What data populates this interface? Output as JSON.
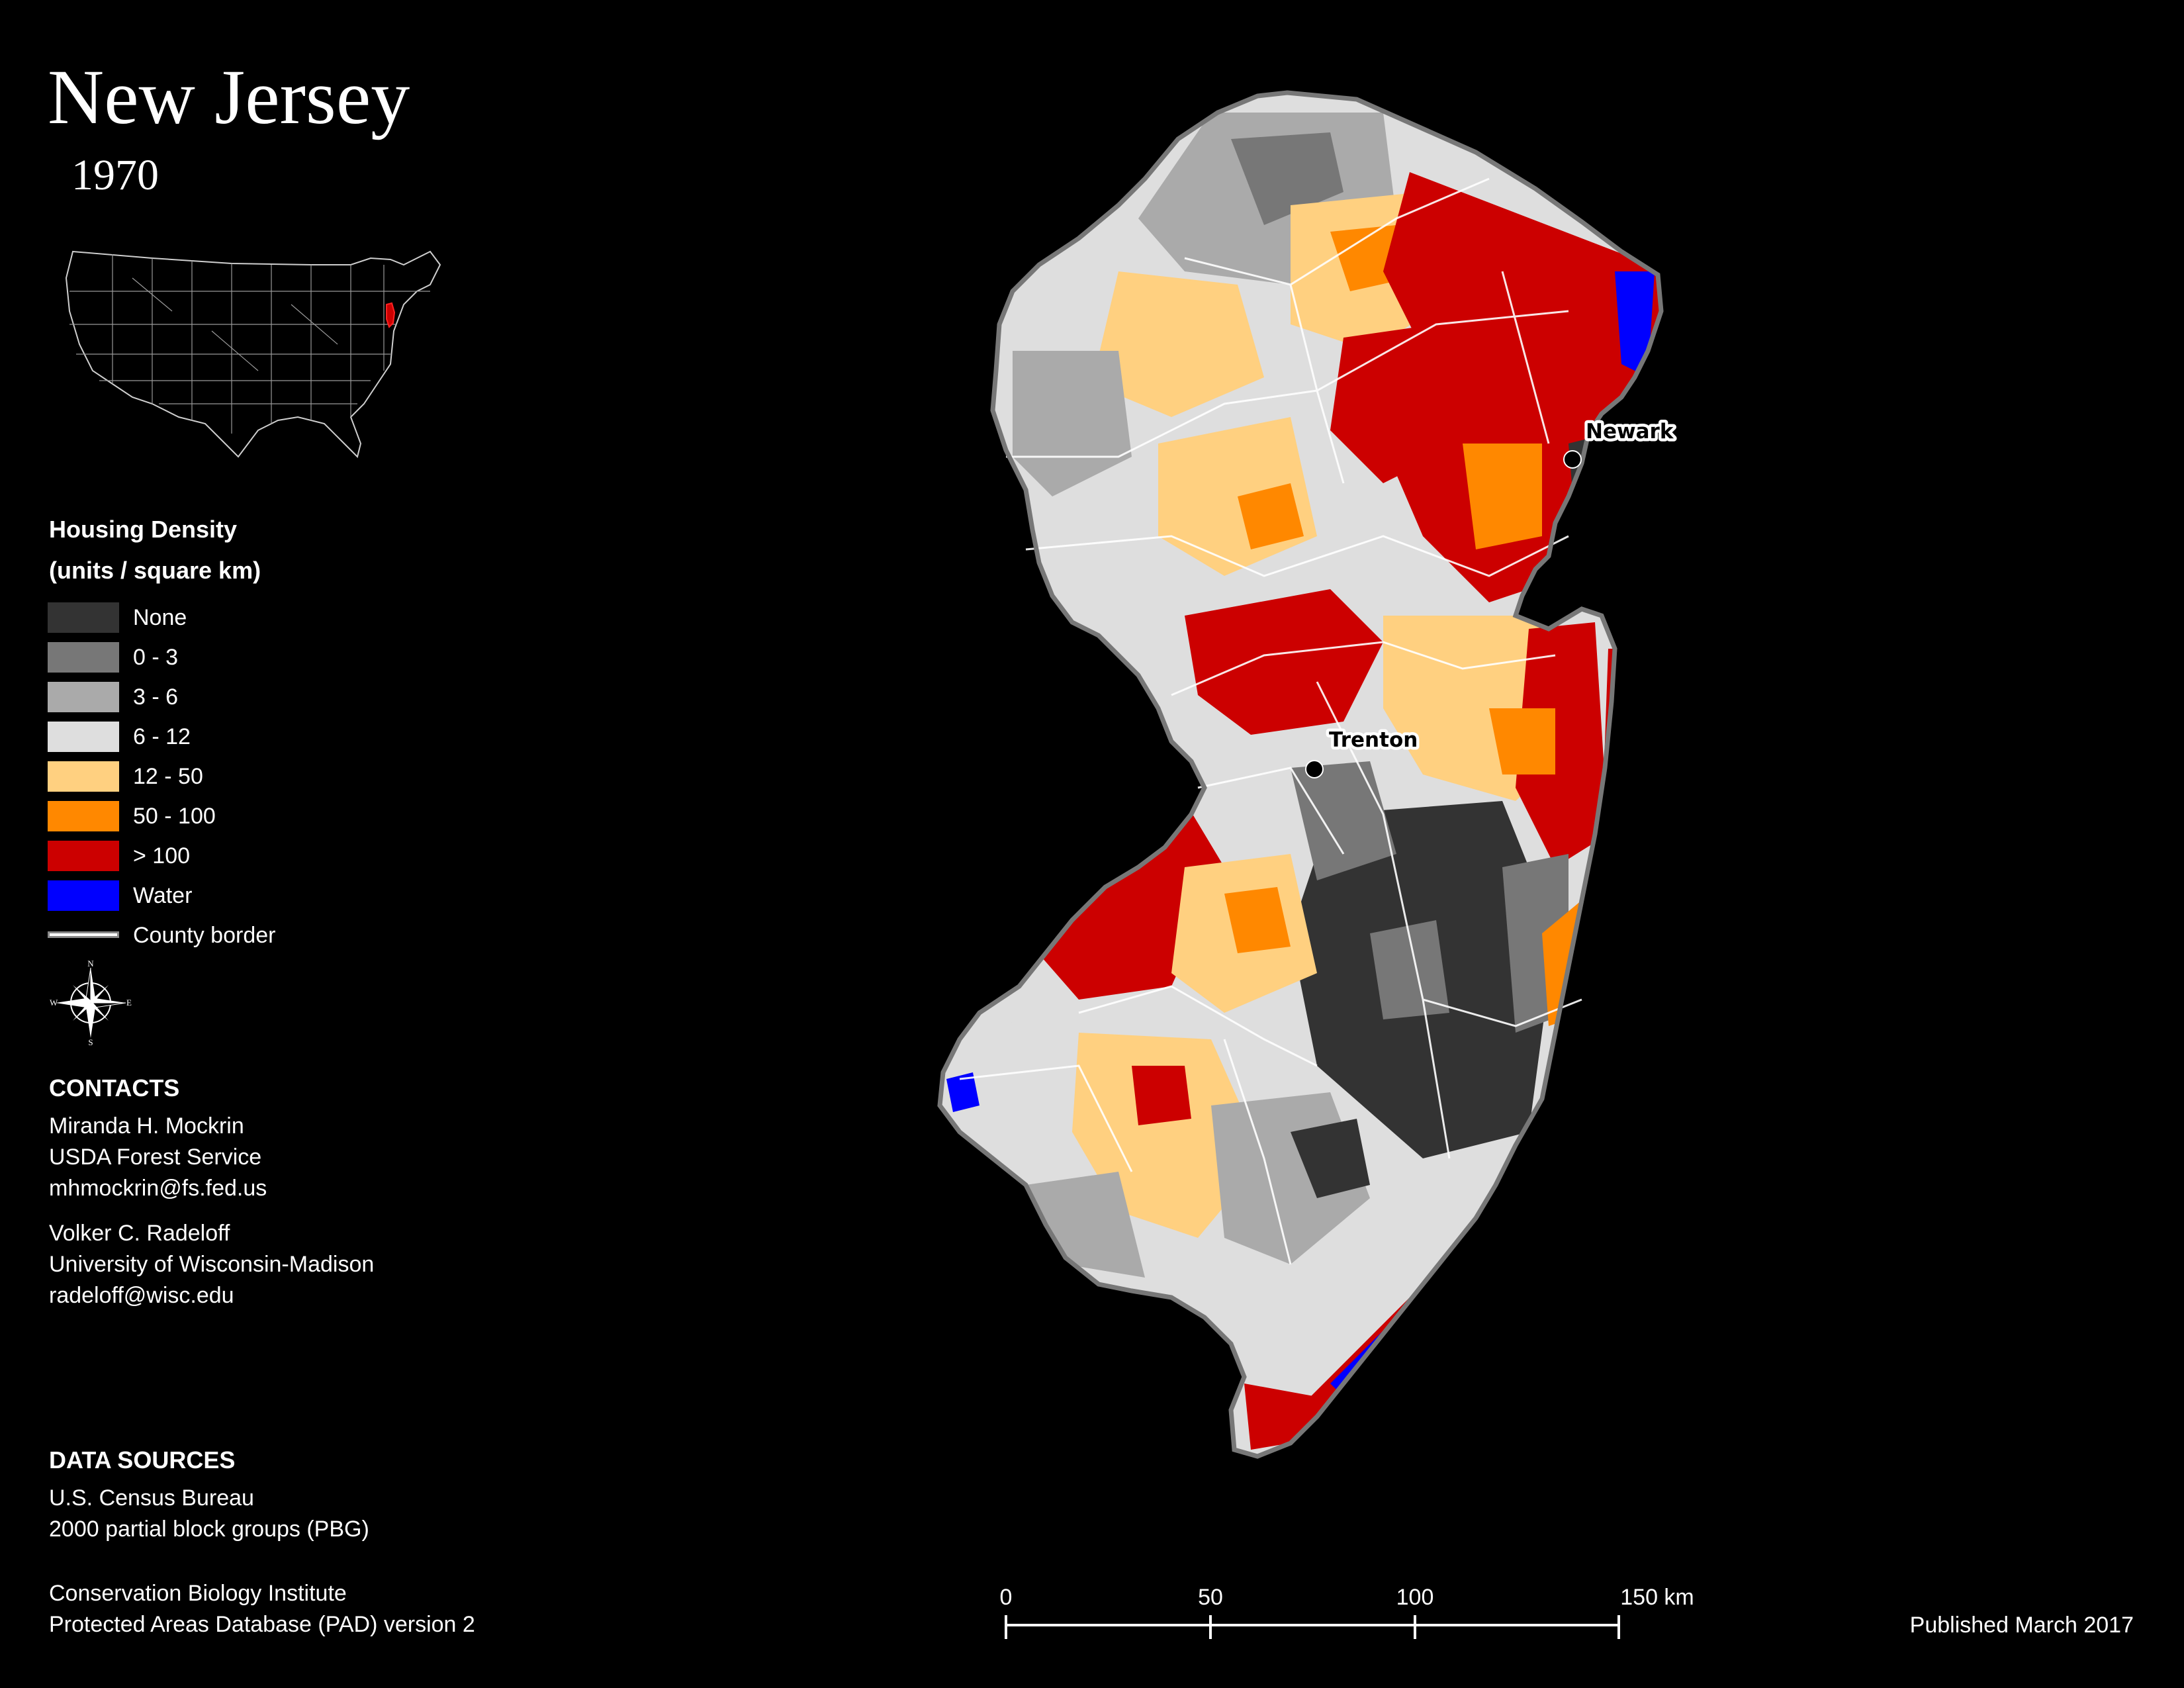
{
  "title": "New Jersey",
  "year": "1970",
  "legend": {
    "title": "Housing Density",
    "units": "(units / square km)",
    "items": [
      {
        "label": "None",
        "color": "#333333"
      },
      {
        "label": "0 - 3",
        "color": "#777777"
      },
      {
        "label": "3 - 6",
        "color": "#aaaaaa"
      },
      {
        "label": "6 - 12",
        "color": "#dedede"
      },
      {
        "label": "12 - 50",
        "color": "#ffd080"
      },
      {
        "label": "50 - 100",
        "color": "#ff8800"
      },
      {
        "label": "> 100",
        "color": "#cc0000"
      },
      {
        "label": "Water",
        "color": "#0000ff"
      }
    ],
    "county_border_label": "County border"
  },
  "compass": {
    "n": "N",
    "s": "S",
    "e": "E",
    "w": "W"
  },
  "contacts": {
    "title": "CONTACTS",
    "people": [
      {
        "name": "Miranda H. Mockrin",
        "org": "USDA Forest Service",
        "email": "mhmockrin@fs.fed.us"
      },
      {
        "name": "Volker C. Radeloff",
        "org": "University of Wisconsin-Madison",
        "email": "radeloff@wisc.edu"
      }
    ]
  },
  "data_sources": {
    "title": "DATA SOURCES",
    "sources": [
      {
        "line1": "U.S. Census Bureau",
        "line2": "2000 partial block groups (PBG)"
      },
      {
        "line1": "Conservation Biology Institute",
        "line2": "Protected Areas Database (PAD) version 2"
      }
    ]
  },
  "scale_bar": {
    "ticks": [
      "0",
      "50",
      "100",
      "150 km"
    ]
  },
  "cities": [
    {
      "name": "Newark"
    },
    {
      "name": "Trenton"
    }
  ],
  "published": "Published March 2017"
}
